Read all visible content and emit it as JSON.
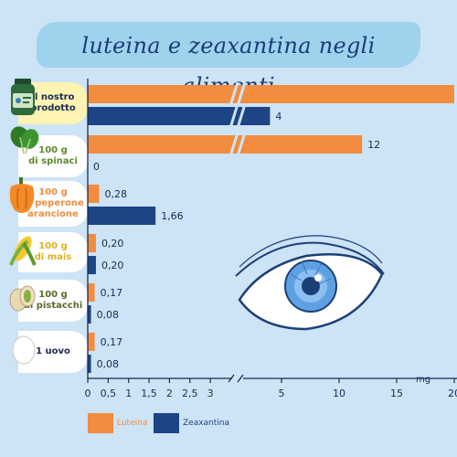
{
  "title": "luteina e zeaxantina negli alimenti",
  "colors": {
    "lutein": "#f28c3e",
    "zeaxanthin": "#1d4585",
    "background": "#cde3f6"
  },
  "chart_data": {
    "type": "bar",
    "orientation": "horizontal",
    "categories": [
      "il nostro prodotto",
      "100 g di spinaci",
      "100 g di peperone arancione",
      "100 g di mais",
      "100 g di pistacchi",
      "1 uovo"
    ],
    "series": [
      {
        "name": "Luteina",
        "color": "#f28c3e",
        "values": [
          20,
          12,
          0.28,
          0.2,
          0.17,
          0.17
        ]
      },
      {
        "name": "Zeaxantina",
        "color": "#1d4585",
        "values": [
          4,
          0,
          1.66,
          0.2,
          0.08,
          0.08
        ]
      }
    ],
    "value_labels": {
      "Luteina": [
        "20",
        "12",
        "0,28",
        "0,20",
        "0,17",
        "0,17"
      ],
      "Zeaxantina": [
        "4",
        "0",
        "1,66",
        "0,20",
        "0,08",
        "0,08"
      ]
    },
    "x_unit": "mg",
    "axis_break": [
      3,
      5
    ],
    "x_ticks": [
      {
        "value": 0,
        "label": "0"
      },
      {
        "value": 0.5,
        "label": "0,5"
      },
      {
        "value": 1,
        "label": "1"
      },
      {
        "value": 1.5,
        "label": "1,5"
      },
      {
        "value": 2,
        "label": "2"
      },
      {
        "value": 2.5,
        "label": "2,5"
      },
      {
        "value": 3,
        "label": "3"
      },
      {
        "value": 5,
        "label": "5"
      },
      {
        "value": 10,
        "label": "10"
      },
      {
        "value": 15,
        "label": "15"
      },
      {
        "value": 20,
        "label": "20"
      }
    ],
    "xlim": [
      0,
      20
    ],
    "legend_position": "bottom-left",
    "grid": false
  },
  "category_labels": [
    {
      "line1": "il nostro",
      "line2": "prodotto",
      "line3": "",
      "color": "#1a2a55",
      "icon": "supplement-bottle-icon"
    },
    {
      "line1": "100 g",
      "line2": "di spinaci",
      "line3": "",
      "color": "#5a8a2a",
      "icon": "spinach-icon"
    },
    {
      "line1": "100 g",
      "line2": "di peperone",
      "line3": "arancione",
      "color": "#f28c3e",
      "icon": "bell-pepper-icon"
    },
    {
      "line1": "100 g",
      "line2": "di mais",
      "line3": "",
      "color": "#e2b020",
      "icon": "corn-icon"
    },
    {
      "line1": "100 g",
      "line2": "di pistacchi",
      "line3": "",
      "color": "#5a6a2a",
      "icon": "pistachio-icon"
    },
    {
      "line1": "1 uovo",
      "line2": "",
      "line3": "",
      "color": "#1a2a55",
      "icon": "egg-icon"
    }
  ],
  "legend": [
    {
      "label": "Luteina",
      "color": "#f28c3e"
    },
    {
      "label": "Zeaxantina",
      "color": "#1d4585"
    }
  ]
}
